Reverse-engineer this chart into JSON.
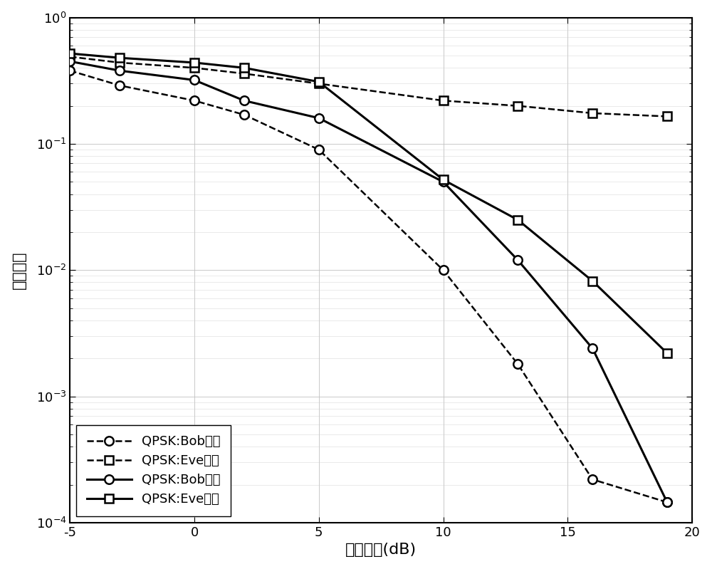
{
  "title": "",
  "xlabel": "发射功率(dB)",
  "ylabel": "误比特率",
  "xlim": [
    -5,
    20
  ],
  "ylim_log": [
    -4,
    0
  ],
  "x_ticks": [
    -5,
    0,
    5,
    10,
    15,
    20
  ],
  "background_color": "#ffffff",
  "bob_trad_x": [
    -5,
    -3,
    0,
    2,
    5,
    10,
    13,
    16,
    19
  ],
  "bob_trad_y": [
    0.38,
    0.29,
    0.22,
    0.17,
    0.09,
    0.01,
    0.0018,
    0.00022,
    0.000145
  ],
  "eve_trad_x": [
    -5,
    -3,
    0,
    2,
    5,
    10,
    13,
    16,
    19
  ],
  "eve_trad_y": [
    0.49,
    0.44,
    0.4,
    0.36,
    0.3,
    0.22,
    0.2,
    0.175,
    0.165
  ],
  "bob_new_x": [
    -5,
    -3,
    0,
    2,
    5,
    10,
    13,
    16,
    19
  ],
  "bob_new_y": [
    0.45,
    0.38,
    0.32,
    0.22,
    0.16,
    0.05,
    0.012,
    0.0024,
    0.000145
  ],
  "eve_new_x": [
    -5,
    -3,
    0,
    2,
    5,
    10,
    13,
    16,
    19
  ],
  "eve_new_y": [
    0.52,
    0.48,
    0.44,
    0.4,
    0.31,
    0.052,
    0.025,
    0.0082,
    0.0022
  ],
  "legend_labels": [
    "QPSK:Bob传统",
    "QPSK:Eve传统",
    "QPSK:Bob本文",
    "QPSK:Eve本文"
  ],
  "line_styles": [
    "dashed",
    "dashed",
    "solid",
    "solid"
  ],
  "markers": [
    "o",
    "s",
    "o",
    "s"
  ],
  "colors": [
    "black",
    "black",
    "black",
    "black"
  ],
  "linewidths": [
    1.8,
    1.8,
    2.2,
    2.2
  ]
}
